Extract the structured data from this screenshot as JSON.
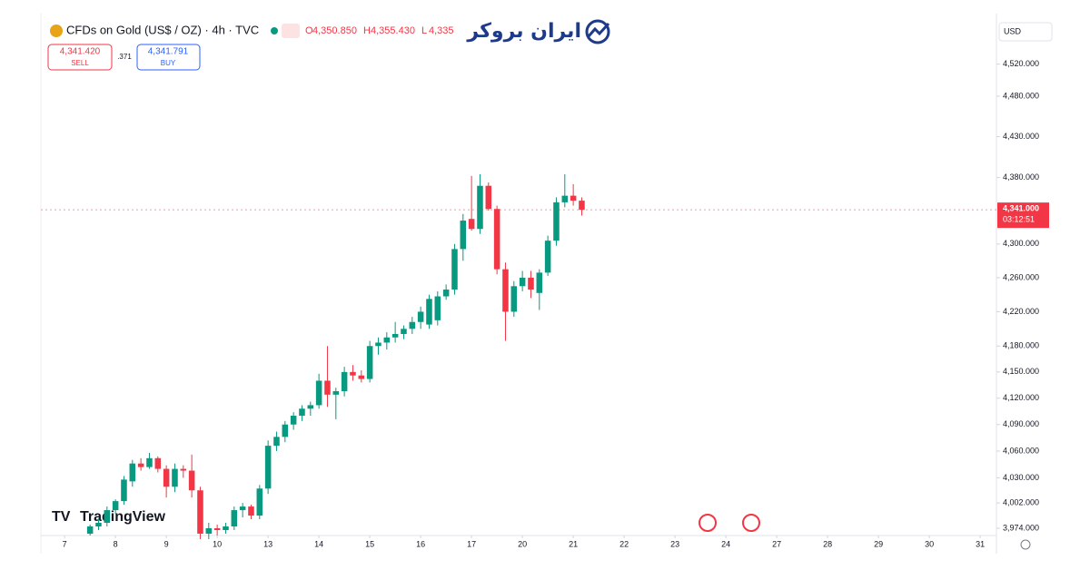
{
  "header": {
    "title": "CFDs on Gold (US$ / OZ) · 4h · TVC",
    "open_key": "O",
    "open": "4,350.850",
    "high_key": "H",
    "high": "4,355.430",
    "low_key": "L",
    "low": "4,335"
  },
  "trade": {
    "sell_price": "4,341.420",
    "sell": "SELL",
    "spread": ".371",
    "buy_price": "4,341.791",
    "buy": "BUY"
  },
  "brand": "ایران بروکر",
  "watermark": "TradingView",
  "currency": "USD",
  "countdown": "03:12:51",
  "chart_data": {
    "type": "candlestick",
    "x": [
      3,
      4,
      5,
      6,
      7,
      8,
      9,
      10,
      11,
      12,
      13,
      14,
      15,
      16,
      17,
      18,
      19,
      20,
      21,
      22,
      23,
      24,
      25,
      26,
      27,
      28,
      29,
      30,
      31,
      32,
      33,
      34,
      35,
      36,
      37,
      38,
      39,
      40,
      41,
      42,
      43,
      44,
      45,
      46,
      47,
      48,
      49,
      50,
      51,
      52,
      53,
      54,
      55,
      56,
      57,
      58,
      59,
      60,
      61
    ],
    "open": [
      3968,
      3976,
      3980,
      3994,
      4004,
      4026,
      4046,
      4042,
      4052,
      4040,
      4020,
      4040,
      4038,
      4016,
      3968,
      3974,
      3972,
      3976,
      3994,
      3998,
      3988,
      4018,
      4066,
      4076,
      4090,
      4100,
      4108,
      4112,
      4140,
      4124,
      4128,
      4150,
      4146,
      4142,
      4180,
      4184,
      4190,
      4194,
      4200,
      4208,
      4205,
      4210,
      4238,
      4246,
      4294,
      4330,
      4318,
      4370,
      4342,
      4270,
      4220,
      4250,
      4260,
      4242,
      4266,
      4304,
      4350,
      4358,
      4352
    ],
    "high": [
      3978,
      3984,
      3998,
      4006,
      4032,
      4050,
      4052,
      4058,
      4054,
      4044,
      4046,
      4044,
      4056,
      4020,
      3980,
      3978,
      3980,
      3998,
      4002,
      4000,
      4022,
      4072,
      4082,
      4094,
      4104,
      4112,
      4116,
      4148,
      4180,
      4132,
      4156,
      4158,
      4152,
      4186,
      4190,
      4196,
      4208,
      4204,
      4214,
      4226,
      4240,
      4244,
      4252,
      4300,
      4336,
      4382,
      4384,
      4374,
      4346,
      4278,
      4256,
      4268,
      4268,
      4270,
      4310,
      4356,
      4384,
      4372,
      4356
    ],
    "low": [
      3966,
      3972,
      3976,
      3990,
      4000,
      4020,
      4038,
      4040,
      4036,
      4008,
      4014,
      4030,
      4008,
      3962,
      3962,
      3966,
      3968,
      3972,
      3986,
      3984,
      3984,
      4012,
      4060,
      4070,
      4084,
      4094,
      4100,
      4108,
      4110,
      4096,
      4122,
      4140,
      4138,
      4138,
      4170,
      4176,
      4184,
      4188,
      4194,
      4200,
      4200,
      4204,
      4234,
      4240,
      4280,
      4316,
      4312,
      4340,
      4264,
      4186,
      4214,
      4244,
      4236,
      4222,
      4262,
      4298,
      4344,
      4346,
      4334
    ],
    "close": [
      3976,
      3980,
      3994,
      4004,
      4028,
      4046,
      4042,
      4052,
      4040,
      4020,
      4040,
      4038,
      4016,
      3968,
      3974,
      3972,
      3976,
      3994,
      3998,
      3988,
      4018,
      4066,
      4076,
      4090,
      4100,
      4108,
      4112,
      4140,
      4124,
      4128,
      4150,
      4146,
      4142,
      4180,
      4184,
      4190,
      4194,
      4200,
      4208,
      4220,
      4235,
      4238,
      4246,
      4294,
      4328,
      4318,
      4370,
      4342,
      4270,
      4220,
      4250,
      4260,
      4246,
      4266,
      4304,
      4350,
      4358,
      4352,
      4341
    ],
    "up_color": "#089981",
    "down_color": "#f23645",
    "log_scale": true,
    "xlim": [
      -2.8,
      109.7
    ],
    "ylim": [
      3966,
      4578
    ],
    "xticks": [
      {
        "value": 0,
        "label": "7"
      },
      {
        "value": 6,
        "label": "8"
      },
      {
        "value": 12,
        "label": "9"
      },
      {
        "value": 18,
        "label": "10"
      },
      {
        "value": 24,
        "label": "13"
      },
      {
        "value": 30,
        "label": "14"
      },
      {
        "value": 36,
        "label": "15"
      },
      {
        "value": 42,
        "label": "16"
      },
      {
        "value": 48,
        "label": "17"
      },
      {
        "value": 54,
        "label": "20"
      },
      {
        "value": 60,
        "label": "21"
      },
      {
        "value": 66,
        "label": "22"
      },
      {
        "value": 72,
        "label": "23"
      },
      {
        "value": 78,
        "label": "24"
      },
      {
        "value": 84,
        "label": "27"
      },
      {
        "value": 90,
        "label": "28"
      },
      {
        "value": 96,
        "label": "29"
      },
      {
        "value": 102,
        "label": "30"
      },
      {
        "value": 108,
        "label": "31"
      }
    ],
    "yticks": [
      {
        "value": 4520,
        "label": "4,520.000"
      },
      {
        "value": 4480,
        "label": "4,480.000"
      },
      {
        "value": 4430,
        "label": "4,430.000"
      },
      {
        "value": 4380,
        "label": "4,380.000"
      },
      {
        "value": 4300,
        "label": "4,300.000"
      },
      {
        "value": 4260,
        "label": "4,260.000"
      },
      {
        "value": 4220,
        "label": "4,220.000"
      },
      {
        "value": 4180,
        "label": "4,180.000"
      },
      {
        "value": 4150,
        "label": "4,150.000"
      },
      {
        "value": 4120,
        "label": "4,120.000"
      },
      {
        "value": 4090,
        "label": "4,090.000"
      },
      {
        "value": 4060,
        "label": "4,060.000"
      },
      {
        "value": 4030,
        "label": "4,030.000"
      },
      {
        "value": 4002,
        "label": "4,002.000"
      },
      {
        "value": 3974,
        "label": "3,974.000"
      }
    ],
    "last_price": {
      "value": 4341,
      "label": "4,341.000"
    }
  }
}
